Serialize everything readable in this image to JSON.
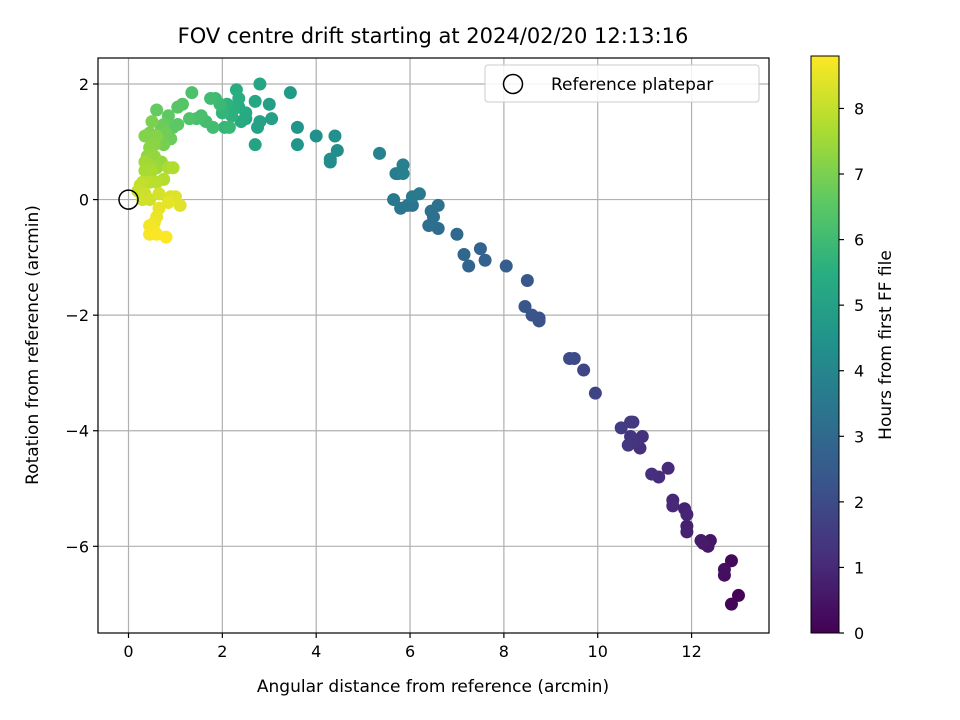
{
  "chart_data": {
    "type": "scatter",
    "title": "FOV centre drift starting at 2024/02/20 12:13:16",
    "xlabel": "Angular distance from reference (arcmin)",
    "ylabel": "Rotation from reference (arcmin)",
    "xlim": [
      -0.65,
      13.65
    ],
    "ylim": [
      -7.5,
      2.45
    ],
    "xticks": [
      0,
      2,
      4,
      6,
      8,
      10,
      12
    ],
    "yticks": [
      -6,
      -4,
      -2,
      0,
      2
    ],
    "xtick_labels": [
      "0",
      "2",
      "4",
      "6",
      "8",
      "10",
      "12"
    ],
    "ytick_labels": [
      "−6",
      "−4",
      "−2",
      "0",
      "2"
    ],
    "grid": true,
    "colorbar": {
      "label": "Hours from first FF file",
      "min": 0,
      "max": 8.8,
      "ticks": [
        0,
        1,
        2,
        3,
        4,
        5,
        6,
        7,
        8
      ],
      "tick_labels": [
        "0",
        "1",
        "2",
        "3",
        "4",
        "5",
        "6",
        "7",
        "8"
      ],
      "colormap": "viridis"
    },
    "legend": {
      "placement": "upper right",
      "entries": [
        {
          "label": "Reference platepar",
          "marker": "open-circle"
        }
      ]
    },
    "reference_point": {
      "x": 0,
      "y": 0
    },
    "points": [
      {
        "x": 13.0,
        "y": -6.85,
        "c": 0.05
      },
      {
        "x": 12.85,
        "y": -7.0,
        "c": 0.1
      },
      {
        "x": 12.85,
        "y": -6.25,
        "c": 0.2
      },
      {
        "x": 12.7,
        "y": -6.5,
        "c": 0.3
      },
      {
        "x": 12.7,
        "y": -6.4,
        "c": 0.35
      },
      {
        "x": 12.4,
        "y": -5.9,
        "c": 0.5
      },
      {
        "x": 12.35,
        "y": -6.0,
        "c": 0.55
      },
      {
        "x": 12.25,
        "y": -5.95,
        "c": 0.6
      },
      {
        "x": 12.2,
        "y": -5.9,
        "c": 0.65
      },
      {
        "x": 11.9,
        "y": -5.65,
        "c": 0.75
      },
      {
        "x": 11.9,
        "y": -5.75,
        "c": 0.8
      },
      {
        "x": 11.85,
        "y": -5.35,
        "c": 0.85
      },
      {
        "x": 11.9,
        "y": -5.45,
        "c": 0.9
      },
      {
        "x": 11.6,
        "y": -5.2,
        "c": 0.95
      },
      {
        "x": 11.6,
        "y": -5.3,
        "c": 1.0
      },
      {
        "x": 11.5,
        "y": -4.65,
        "c": 1.05
      },
      {
        "x": 11.3,
        "y": -4.8,
        "c": 1.1
      },
      {
        "x": 11.15,
        "y": -4.75,
        "c": 1.15
      },
      {
        "x": 10.9,
        "y": -4.3,
        "c": 1.2
      },
      {
        "x": 10.95,
        "y": -4.1,
        "c": 1.25
      },
      {
        "x": 10.8,
        "y": -4.2,
        "c": 1.3
      },
      {
        "x": 10.7,
        "y": -4.1,
        "c": 1.35
      },
      {
        "x": 10.65,
        "y": -4.25,
        "c": 1.4
      },
      {
        "x": 10.75,
        "y": -3.85,
        "c": 1.45
      },
      {
        "x": 10.7,
        "y": -3.85,
        "c": 1.5
      },
      {
        "x": 10.5,
        "y": -3.95,
        "c": 1.55
      },
      {
        "x": 9.95,
        "y": -3.35,
        "c": 1.75
      },
      {
        "x": 9.7,
        "y": -2.95,
        "c": 1.85
      },
      {
        "x": 9.5,
        "y": -2.75,
        "c": 1.95
      },
      {
        "x": 9.4,
        "y": -2.75,
        "c": 2.0
      },
      {
        "x": 8.75,
        "y": -2.05,
        "c": 2.2
      },
      {
        "x": 8.75,
        "y": -2.1,
        "c": 2.25
      },
      {
        "x": 8.6,
        "y": -2.0,
        "c": 2.3
      },
      {
        "x": 8.45,
        "y": -1.85,
        "c": 2.35
      },
      {
        "x": 8.5,
        "y": -1.4,
        "c": 2.4
      },
      {
        "x": 8.05,
        "y": -1.15,
        "c": 2.6
      },
      {
        "x": 7.6,
        "y": -1.05,
        "c": 2.75
      },
      {
        "x": 7.5,
        "y": -0.85,
        "c": 2.8
      },
      {
        "x": 7.25,
        "y": -1.15,
        "c": 2.85
      },
      {
        "x": 7.15,
        "y": -0.95,
        "c": 2.9
      },
      {
        "x": 7.0,
        "y": -0.6,
        "c": 3.0
      },
      {
        "x": 6.6,
        "y": -0.5,
        "c": 3.1
      },
      {
        "x": 6.4,
        "y": -0.45,
        "c": 3.15
      },
      {
        "x": 6.5,
        "y": -0.3,
        "c": 3.2
      },
      {
        "x": 6.45,
        "y": -0.2,
        "c": 3.25
      },
      {
        "x": 6.6,
        "y": -0.1,
        "c": 3.3
      },
      {
        "x": 6.05,
        "y": -0.1,
        "c": 3.35
      },
      {
        "x": 5.95,
        "y": -0.1,
        "c": 3.4
      },
      {
        "x": 5.8,
        "y": -0.15,
        "c": 3.45
      },
      {
        "x": 5.65,
        "y": 0.0,
        "c": 3.5
      },
      {
        "x": 6.05,
        "y": 0.05,
        "c": 3.55
      },
      {
        "x": 6.2,
        "y": 0.1,
        "c": 3.6
      },
      {
        "x": 5.7,
        "y": 0.45,
        "c": 3.65
      },
      {
        "x": 5.75,
        "y": 0.45,
        "c": 3.7
      },
      {
        "x": 5.85,
        "y": 0.45,
        "c": 3.75
      },
      {
        "x": 5.85,
        "y": 0.6,
        "c": 3.8
      },
      {
        "x": 5.35,
        "y": 0.8,
        "c": 3.9
      },
      {
        "x": 4.3,
        "y": 0.65,
        "c": 4.2
      },
      {
        "x": 4.3,
        "y": 0.7,
        "c": 4.25
      },
      {
        "x": 4.45,
        "y": 0.85,
        "c": 4.3
      },
      {
        "x": 4.4,
        "y": 1.1,
        "c": 4.35
      },
      {
        "x": 4.0,
        "y": 1.1,
        "c": 4.45
      },
      {
        "x": 3.6,
        "y": 1.25,
        "c": 4.55
      },
      {
        "x": 3.6,
        "y": 0.95,
        "c": 4.6
      },
      {
        "x": 3.45,
        "y": 1.85,
        "c": 4.75
      },
      {
        "x": 3.0,
        "y": 1.65,
        "c": 4.9
      },
      {
        "x": 3.05,
        "y": 1.4,
        "c": 4.95
      },
      {
        "x": 2.8,
        "y": 1.35,
        "c": 5.0
      },
      {
        "x": 2.75,
        "y": 1.25,
        "c": 5.05
      },
      {
        "x": 2.7,
        "y": 0.95,
        "c": 5.1
      },
      {
        "x": 2.8,
        "y": 2.0,
        "c": 5.15
      },
      {
        "x": 2.7,
        "y": 1.7,
        "c": 5.2
      },
      {
        "x": 2.5,
        "y": 1.4,
        "c": 5.25
      },
      {
        "x": 2.5,
        "y": 1.5,
        "c": 5.3
      },
      {
        "x": 2.4,
        "y": 1.35,
        "c": 5.35
      },
      {
        "x": 2.35,
        "y": 1.6,
        "c": 5.4
      },
      {
        "x": 2.3,
        "y": 1.9,
        "c": 5.45
      },
      {
        "x": 2.35,
        "y": 1.75,
        "c": 5.5
      },
      {
        "x": 2.25,
        "y": 1.6,
        "c": 5.55
      },
      {
        "x": 2.2,
        "y": 1.45,
        "c": 5.6
      },
      {
        "x": 2.1,
        "y": 1.65,
        "c": 5.65
      },
      {
        "x": 2.0,
        "y": 1.5,
        "c": 5.75
      },
      {
        "x": 2.05,
        "y": 1.25,
        "c": 5.8
      },
      {
        "x": 2.15,
        "y": 1.25,
        "c": 5.85
      },
      {
        "x": 1.95,
        "y": 1.65,
        "c": 5.9
      },
      {
        "x": 1.85,
        "y": 1.75,
        "c": 5.95
      },
      {
        "x": 1.75,
        "y": 1.75,
        "c": 6.0
      },
      {
        "x": 1.8,
        "y": 1.25,
        "c": 6.05
      },
      {
        "x": 1.65,
        "y": 1.35,
        "c": 6.1
      },
      {
        "x": 1.55,
        "y": 1.45,
        "c": 6.15
      },
      {
        "x": 1.45,
        "y": 1.4,
        "c": 6.2
      },
      {
        "x": 1.35,
        "y": 1.85,
        "c": 6.25
      },
      {
        "x": 1.3,
        "y": 1.4,
        "c": 6.3
      },
      {
        "x": 1.15,
        "y": 1.65,
        "c": 6.4
      },
      {
        "x": 1.05,
        "y": 1.6,
        "c": 6.45
      },
      {
        "x": 1.05,
        "y": 1.3,
        "c": 6.5
      },
      {
        "x": 0.95,
        "y": 1.25,
        "c": 6.55
      },
      {
        "x": 0.85,
        "y": 1.45,
        "c": 6.6
      },
      {
        "x": 0.6,
        "y": 1.55,
        "c": 6.65
      },
      {
        "x": 0.75,
        "y": 1.3,
        "c": 6.7
      },
      {
        "x": 0.9,
        "y": 1.05,
        "c": 6.75
      },
      {
        "x": 0.7,
        "y": 1.25,
        "c": 6.8
      },
      {
        "x": 0.8,
        "y": 1.15,
        "c": 6.85
      },
      {
        "x": 0.65,
        "y": 1.05,
        "c": 6.9
      },
      {
        "x": 0.75,
        "y": 0.95,
        "c": 6.95
      },
      {
        "x": 0.5,
        "y": 1.35,
        "c": 7.0
      },
      {
        "x": 0.45,
        "y": 1.15,
        "c": 7.05
      },
      {
        "x": 0.35,
        "y": 1.1,
        "c": 7.1
      },
      {
        "x": 0.6,
        "y": 1.1,
        "c": 7.15
      },
      {
        "x": 0.55,
        "y": 0.95,
        "c": 7.2
      },
      {
        "x": 0.45,
        "y": 0.9,
        "c": 7.25
      },
      {
        "x": 0.4,
        "y": 0.75,
        "c": 7.3
      },
      {
        "x": 0.55,
        "y": 0.75,
        "c": 7.35
      },
      {
        "x": 0.7,
        "y": 0.65,
        "c": 7.4
      },
      {
        "x": 0.6,
        "y": 0.55,
        "c": 7.45
      },
      {
        "x": 0.45,
        "y": 0.6,
        "c": 7.5
      },
      {
        "x": 0.35,
        "y": 0.65,
        "c": 7.55
      },
      {
        "x": 0.35,
        "y": 0.5,
        "c": 7.6
      },
      {
        "x": 0.5,
        "y": 0.5,
        "c": 7.65
      },
      {
        "x": 0.85,
        "y": 0.55,
        "c": 7.7
      },
      {
        "x": 0.95,
        "y": 0.55,
        "c": 7.75
      },
      {
        "x": 0.75,
        "y": 0.35,
        "c": 7.8
      },
      {
        "x": 0.6,
        "y": 0.3,
        "c": 7.85
      },
      {
        "x": 0.45,
        "y": 0.3,
        "c": 7.9
      },
      {
        "x": 0.3,
        "y": 0.3,
        "c": 7.95
      },
      {
        "x": 0.25,
        "y": 0.25,
        "c": 8.0
      },
      {
        "x": 0.2,
        "y": 0.15,
        "c": 8.05
      },
      {
        "x": 0.35,
        "y": 0.1,
        "c": 8.1
      },
      {
        "x": 0.3,
        "y": 0.0,
        "c": 8.15
      },
      {
        "x": 0.45,
        "y": 0.0,
        "c": 8.2
      },
      {
        "x": 0.65,
        "y": 0.1,
        "c": 8.25
      },
      {
        "x": 0.9,
        "y": 0.05,
        "c": 8.3
      },
      {
        "x": 1.0,
        "y": 0.05,
        "c": 8.35
      },
      {
        "x": 1.1,
        "y": -0.1,
        "c": 8.4
      },
      {
        "x": 0.85,
        "y": -0.05,
        "c": 8.45
      },
      {
        "x": 0.65,
        "y": -0.15,
        "c": 8.5
      },
      {
        "x": 0.6,
        "y": -0.3,
        "c": 8.55
      },
      {
        "x": 0.55,
        "y": -0.4,
        "c": 8.6
      },
      {
        "x": 0.45,
        "y": -0.45,
        "c": 8.65
      },
      {
        "x": 0.55,
        "y": -0.55,
        "c": 8.7
      },
      {
        "x": 0.45,
        "y": -0.6,
        "c": 8.72
      },
      {
        "x": 0.6,
        "y": -0.6,
        "c": 8.75
      },
      {
        "x": 0.8,
        "y": -0.65,
        "c": 8.78
      }
    ]
  }
}
